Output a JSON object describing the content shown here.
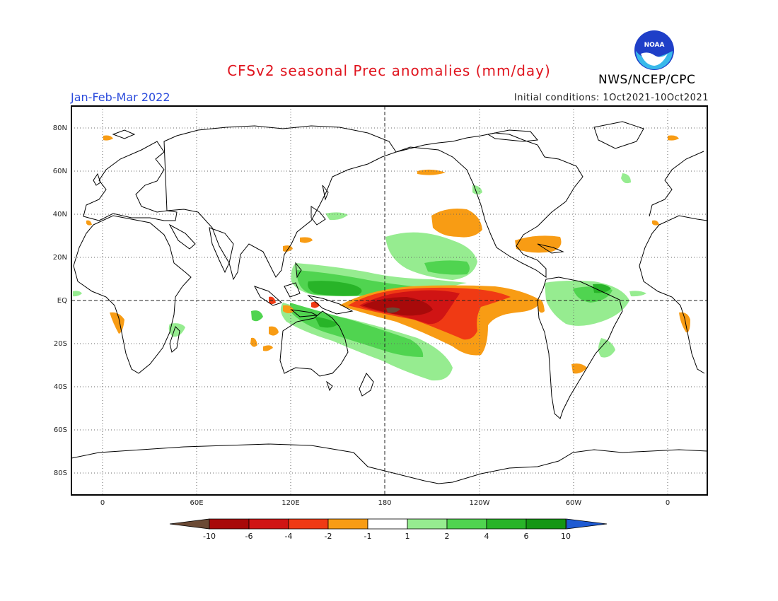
{
  "title": "CFSv2 seasonal Prec anomalies (mm/day)",
  "season": "Jan-Feb-Mar 2022",
  "initial_conditions": "Initial conditions: 1Oct2021-10Oct2021",
  "organization": "NWS/NCEP/CPC",
  "logo_text": "NOAA",
  "lat_labels": [
    "80N",
    "60N",
    "40N",
    "20N",
    "EQ",
    "20S",
    "40S",
    "60S",
    "80S"
  ],
  "lon_labels": [
    "0",
    "60E",
    "120E",
    "180",
    "120W",
    "60W",
    "0"
  ],
  "colorbar": {
    "labels": [
      "-10",
      "-6",
      "-4",
      "-2",
      "-1",
      "1",
      "2",
      "4",
      "6",
      "10"
    ],
    "colors": [
      "#6b4a35",
      "#a80a0a",
      "#d01414",
      "#f03a14",
      "#f89c14",
      "#ffffff",
      "#96ec90",
      "#50d450",
      "#28b428",
      "#149614",
      "#1e5ad2"
    ]
  }
}
